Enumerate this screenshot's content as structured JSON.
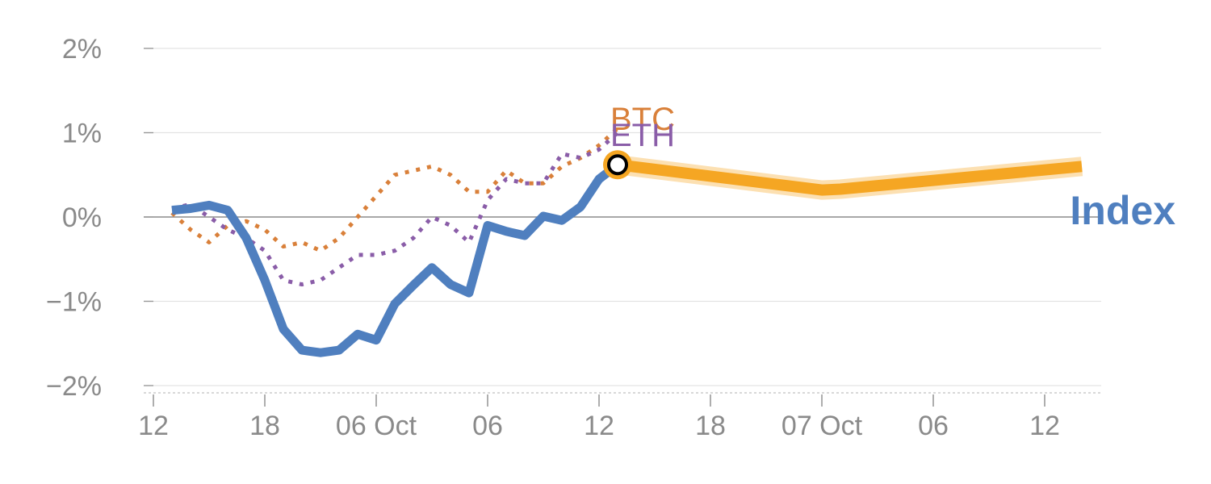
{
  "chart_data": {
    "type": "line",
    "title": "",
    "xlabel": "",
    "ylabel": "",
    "ylim": [
      -2,
      2
    ],
    "y_ticks": [
      {
        "value": 2,
        "label": "2%"
      },
      {
        "value": 1,
        "label": "1%"
      },
      {
        "value": 0,
        "label": "0%"
      },
      {
        "value": -1,
        "label": "−1%"
      },
      {
        "value": -2,
        "label": "−2%"
      }
    ],
    "x_range": [
      0,
      51
    ],
    "x_ticks": [
      {
        "x": 0,
        "label": "12"
      },
      {
        "x": 6,
        "label": "18"
      },
      {
        "x": 12,
        "label": "06 Oct"
      },
      {
        "x": 18,
        "label": "06"
      },
      {
        "x": 24,
        "label": "12"
      },
      {
        "x": 30,
        "label": "18"
      },
      {
        "x": 36,
        "label": "07 Oct"
      },
      {
        "x": 42,
        "label": "06"
      },
      {
        "x": 48,
        "label": "12"
      }
    ],
    "series": [
      {
        "name": "BTC",
        "label": "BTC",
        "color": "#d9803a",
        "style": "dotted",
        "x": [
          1,
          2,
          3,
          4,
          5,
          6,
          7,
          8,
          9,
          10,
          11,
          12,
          13,
          14,
          15,
          16,
          17,
          18,
          19,
          20,
          21,
          22,
          23,
          24,
          25
        ],
        "values": [
          0.05,
          -0.15,
          -0.3,
          -0.1,
          -0.05,
          -0.15,
          -0.35,
          -0.3,
          -0.4,
          -0.25,
          0.0,
          0.25,
          0.5,
          0.55,
          0.6,
          0.5,
          0.3,
          0.3,
          0.55,
          0.4,
          0.4,
          0.6,
          0.7,
          0.85,
          1.05
        ]
      },
      {
        "name": "ETH",
        "label": "ETH",
        "color": "#8a5da8",
        "style": "dotted",
        "x": [
          1,
          2,
          3,
          4,
          5,
          6,
          7,
          8,
          9,
          10,
          11,
          12,
          13,
          14,
          15,
          16,
          17,
          18,
          19,
          20,
          21,
          22,
          23,
          24,
          25
        ],
        "values": [
          0.1,
          0.15,
          0.0,
          -0.15,
          -0.25,
          -0.4,
          -0.75,
          -0.8,
          -0.75,
          -0.6,
          -0.45,
          -0.45,
          -0.4,
          -0.25,
          0.0,
          -0.1,
          -0.3,
          0.2,
          0.45,
          0.4,
          0.4,
          0.75,
          0.7,
          0.8,
          1.0
        ]
      },
      {
        "name": "Index",
        "label": "Index",
        "color": "#4f7fbf",
        "style": "solid",
        "x": [
          1,
          2,
          3,
          4,
          5,
          6,
          7,
          8,
          9,
          10,
          11,
          12,
          13,
          14,
          15,
          16,
          17,
          18,
          19,
          20,
          21,
          22,
          23,
          24,
          25
        ],
        "values": [
          0.08,
          0.1,
          0.14,
          0.08,
          -0.25,
          -0.75,
          -1.33,
          -1.58,
          -1.61,
          -1.58,
          -1.39,
          -1.46,
          -1.03,
          -0.81,
          -0.6,
          -0.8,
          -0.9,
          -0.1,
          -0.17,
          -0.22,
          0.01,
          -0.04,
          0.12,
          0.45,
          0.62
        ]
      }
    ],
    "projection": {
      "name": "projection",
      "color": "#f5a623",
      "x": [
        25,
        36,
        37,
        50
      ],
      "values": [
        0.62,
        0.32,
        0.33,
        0.6
      ]
    },
    "marker": {
      "x": 25,
      "value": 0.62,
      "fill": "#f5a623"
    }
  }
}
